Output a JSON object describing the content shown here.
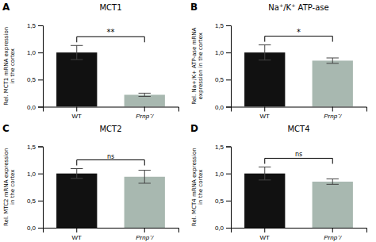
{
  "chart_data": [
    {
      "type": "bar",
      "title": "MCT1",
      "ylabel": "Rel. MCT1 mRNA expression\nin the cortex",
      "categories": [
        "WT",
        "Prnp⁻/"
      ],
      "values": [
        1.0,
        0.22
      ],
      "errors": [
        0.13,
        0.03
      ],
      "colors": [
        "#111111",
        "#a8b8b0"
      ],
      "annotations": [
        "A",
        "**"
      ],
      "ylim": [
        0,
        1.5
      ],
      "yticks": [
        {
          "value": 0.0,
          "label": "0,0"
        },
        {
          "value": 0.5,
          "label": "0,5"
        },
        {
          "value": 1.0,
          "label": "1,0"
        },
        {
          "value": 1.5,
          "label": "1,5"
        }
      ]
    },
    {
      "type": "bar",
      "title": "Na⁺/K⁺ ATP-ase",
      "ylabel": "Rel. Na+/K+ ATP-ase mRNA\nexpression in the cortex",
      "categories": [
        "WT",
        "Prnp⁻/"
      ],
      "values": [
        1.0,
        0.85
      ],
      "errors": [
        0.14,
        0.05
      ],
      "colors": [
        "#111111",
        "#a8b8b0"
      ],
      "annotations": [
        "B",
        "*"
      ],
      "ylim": [
        0,
        1.5
      ],
      "yticks": [
        {
          "value": 0.0,
          "label": "0,0"
        },
        {
          "value": 0.5,
          "label": "0,5"
        },
        {
          "value": 1.0,
          "label": "1,0"
        },
        {
          "value": 1.5,
          "label": "1,5"
        }
      ]
    },
    {
      "type": "bar",
      "title": "MCT2",
      "ylabel": "Rel. MTC2 mRNA expression\nin the cortex",
      "categories": [
        "WT",
        "Prnp⁻/"
      ],
      "values": [
        1.0,
        0.94
      ],
      "errors": [
        0.09,
        0.12
      ],
      "colors": [
        "#111111",
        "#a8b8b0"
      ],
      "annotations": [
        "C",
        "ns"
      ],
      "ylim": [
        0,
        1.5
      ],
      "yticks": [
        {
          "value": 0.0,
          "label": "0,0"
        },
        {
          "value": 0.5,
          "label": "0,5"
        },
        {
          "value": 1.0,
          "label": "1,0"
        },
        {
          "value": 1.5,
          "label": "1,5"
        }
      ]
    },
    {
      "type": "bar",
      "title": "MCT4",
      "ylabel": "Rel. MCT4 mRNA expression\nin the cortex",
      "categories": [
        "WT",
        "Prnp⁻/"
      ],
      "values": [
        1.0,
        0.85
      ],
      "errors": [
        0.12,
        0.05
      ],
      "colors": [
        "#111111",
        "#a8b8b0"
      ],
      "annotations": [
        "D",
        "ns"
      ],
      "ylim": [
        0,
        1.5
      ],
      "yticks": [
        {
          "value": 0.0,
          "label": "0,0"
        },
        {
          "value": 0.5,
          "label": "0,5"
        },
        {
          "value": 1.0,
          "label": "1,0"
        },
        {
          "value": 1.5,
          "label": "1,5"
        }
      ]
    }
  ]
}
